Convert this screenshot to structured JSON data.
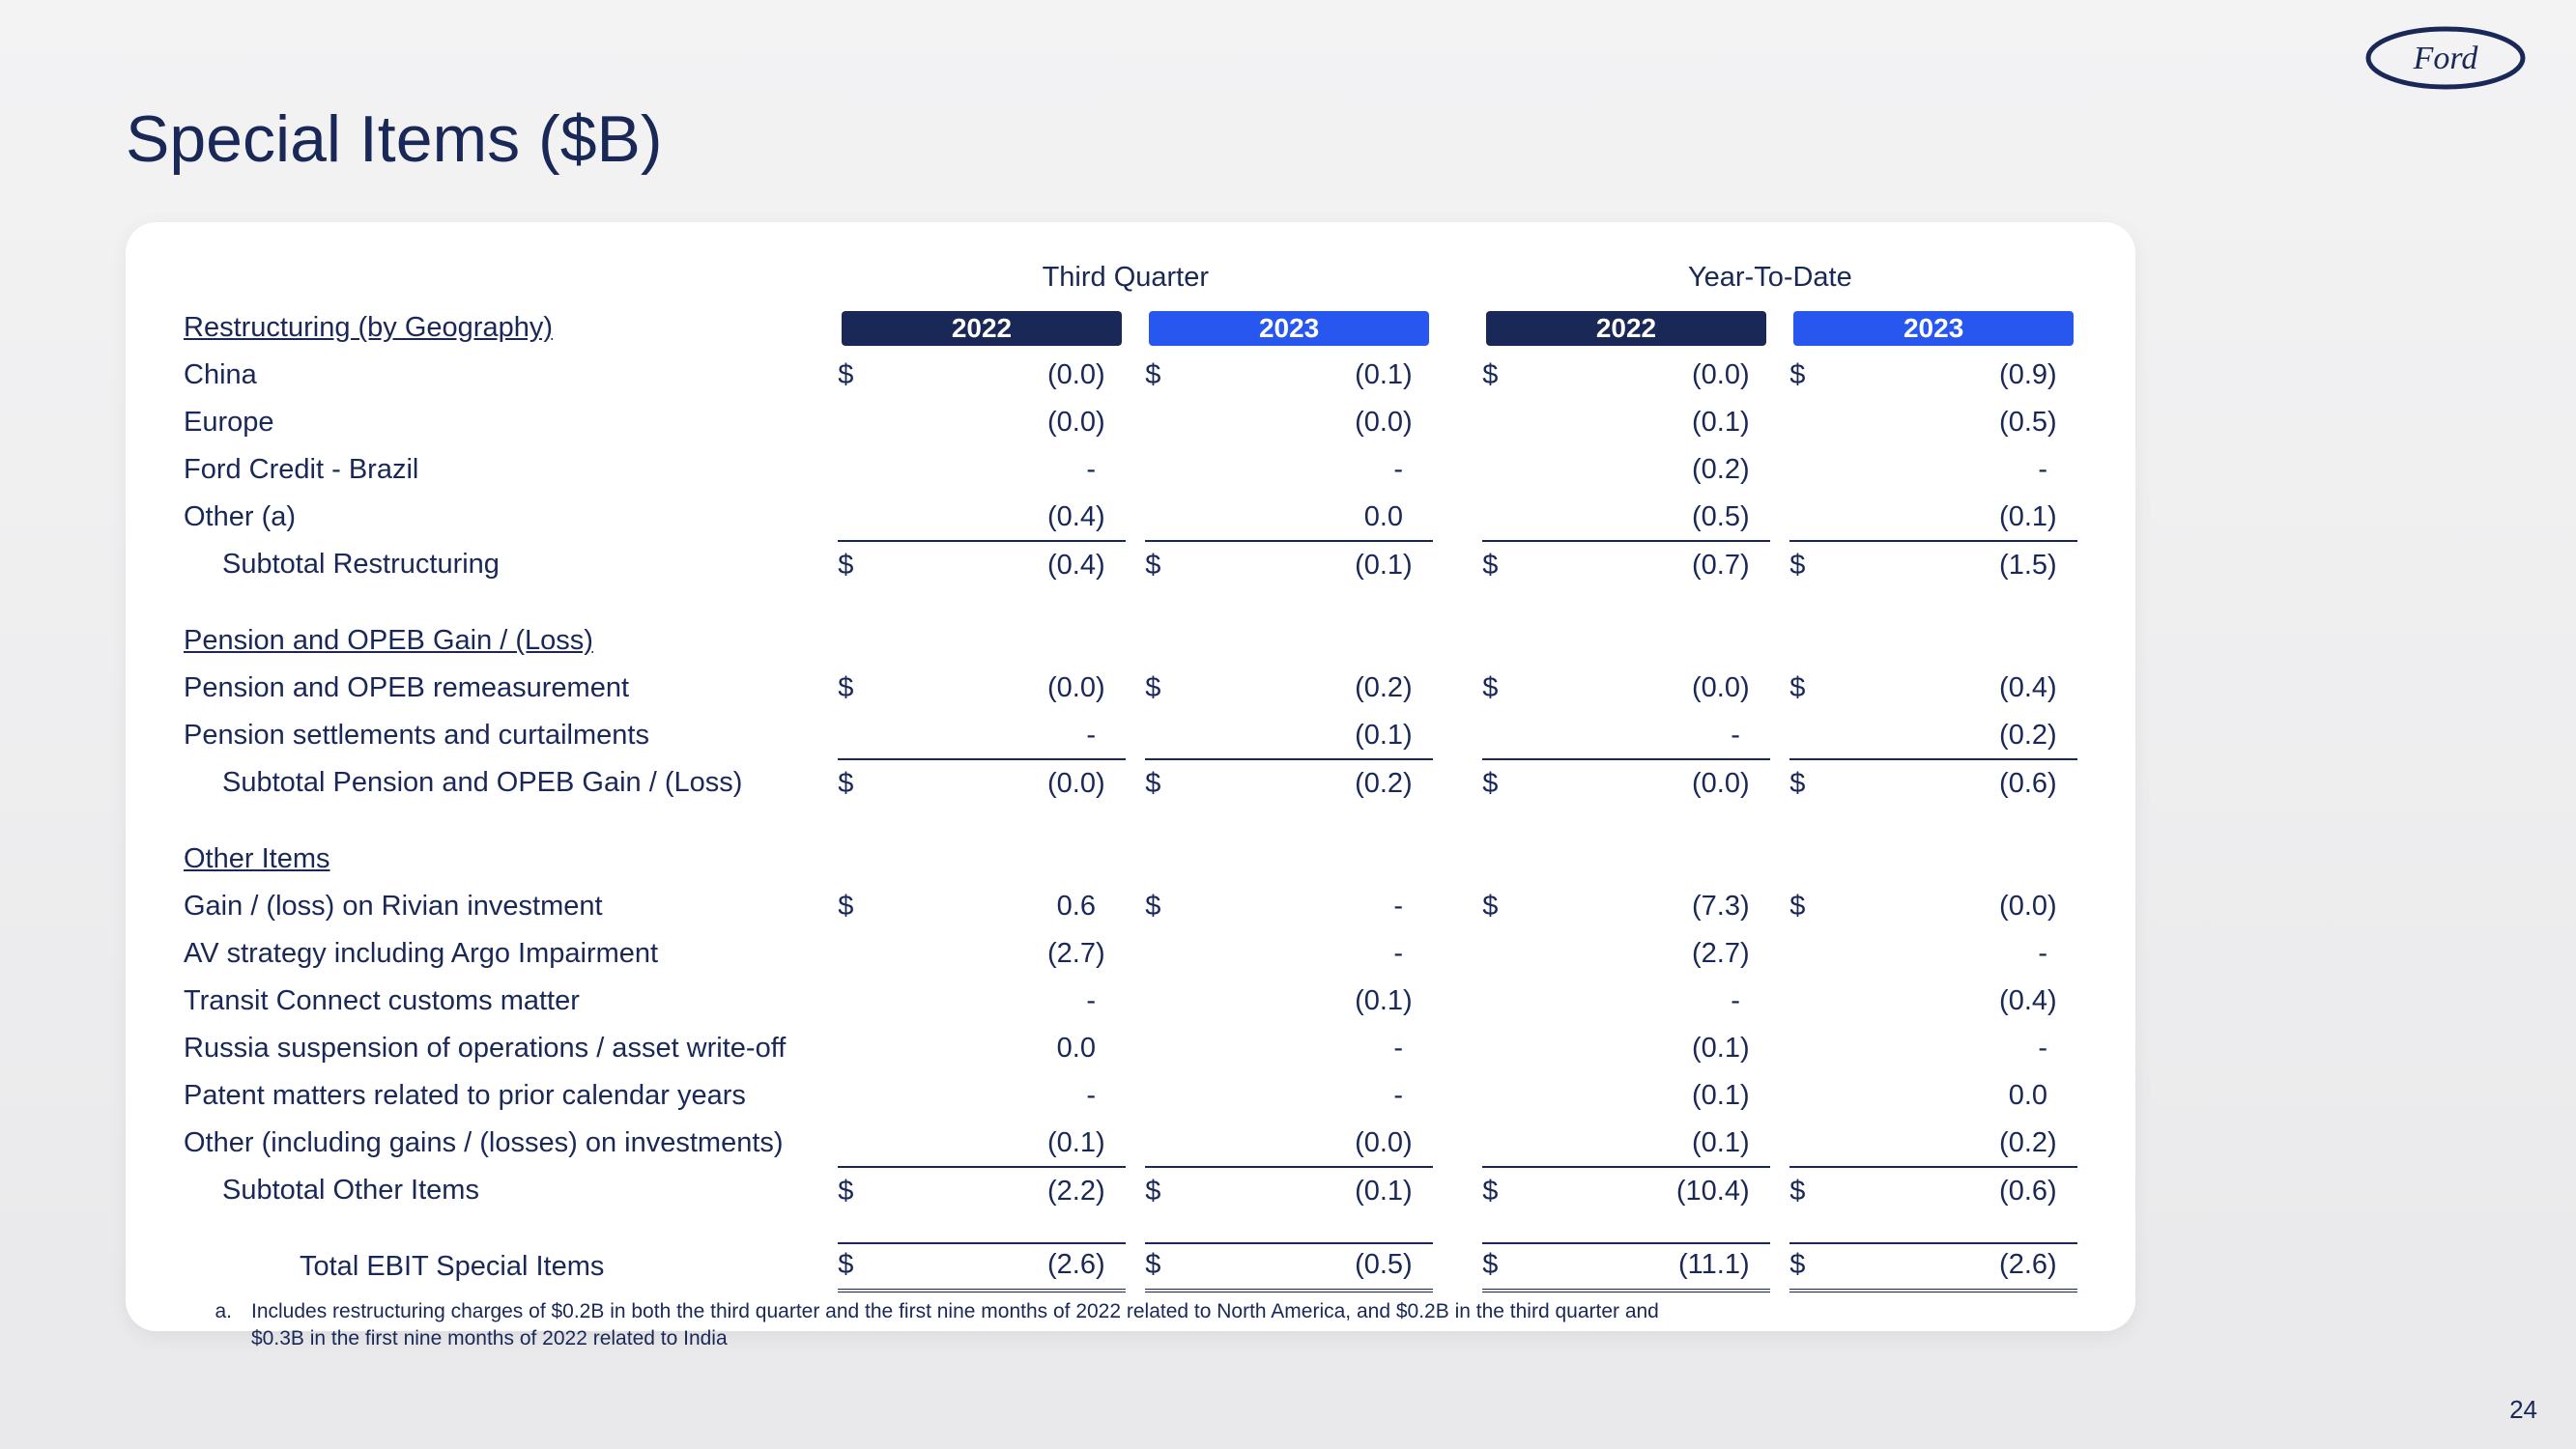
{
  "page": {
    "title": "Special Items ($B)",
    "number": "24"
  },
  "logo": {
    "text": "Ford",
    "color": "#1a2857"
  },
  "table": {
    "periods": [
      "Third Quarter",
      "Year-To-Date"
    ],
    "years": [
      "2022",
      "2023",
      "2022",
      "2023"
    ],
    "year_pill_colors": [
      "#1a2857",
      "#2857f0",
      "#1a2857",
      "#2857f0"
    ],
    "sections": [
      {
        "header": "Restructuring (by Geography)",
        "rows": [
          {
            "label": "China",
            "cells": [
              {
                "sym": "$",
                "val": "(0.0)"
              },
              {
                "sym": "$",
                "val": "(0.1)"
              },
              {
                "sym": "$",
                "val": "(0.0)"
              },
              {
                "sym": "$",
                "val": "(0.9)"
              }
            ]
          },
          {
            "label": "Europe",
            "cells": [
              {
                "sym": "",
                "val": "(0.0)"
              },
              {
                "sym": "",
                "val": "(0.0)"
              },
              {
                "sym": "",
                "val": "(0.1)"
              },
              {
                "sym": "",
                "val": "(0.5)"
              }
            ]
          },
          {
            "label": "Ford Credit - Brazil",
            "cells": [
              {
                "sym": "",
                "val": "-"
              },
              {
                "sym": "",
                "val": "-"
              },
              {
                "sym": "",
                "val": "(0.2)"
              },
              {
                "sym": "",
                "val": "-"
              }
            ]
          },
          {
            "label": "Other (a)",
            "cells": [
              {
                "sym": "",
                "val": "(0.4)"
              },
              {
                "sym": "",
                "val": "0.0"
              },
              {
                "sym": "",
                "val": "(0.5)"
              },
              {
                "sym": "",
                "val": "(0.1)"
              }
            ]
          }
        ],
        "subtotal": {
          "label": "Subtotal Restructuring",
          "cells": [
            {
              "sym": "$",
              "val": "(0.4)"
            },
            {
              "sym": "$",
              "val": "(0.1)"
            },
            {
              "sym": "$",
              "val": "(0.7)"
            },
            {
              "sym": "$",
              "val": "(1.5)"
            }
          ]
        }
      },
      {
        "header": "Pension and OPEB Gain / (Loss)",
        "rows": [
          {
            "label": "Pension and OPEB remeasurement",
            "cells": [
              {
                "sym": "$",
                "val": "(0.0)"
              },
              {
                "sym": "$",
                "val": "(0.2)"
              },
              {
                "sym": "$",
                "val": "(0.0)"
              },
              {
                "sym": "$",
                "val": "(0.4)"
              }
            ]
          },
          {
            "label": "Pension settlements and curtailments",
            "cells": [
              {
                "sym": "",
                "val": "-"
              },
              {
                "sym": "",
                "val": "(0.1)"
              },
              {
                "sym": "",
                "val": "-"
              },
              {
                "sym": "",
                "val": "(0.2)"
              }
            ]
          }
        ],
        "subtotal": {
          "label": "Subtotal Pension and OPEB Gain / (Loss)",
          "cells": [
            {
              "sym": "$",
              "val": "(0.0)"
            },
            {
              "sym": "$",
              "val": "(0.2)"
            },
            {
              "sym": "$",
              "val": "(0.0)"
            },
            {
              "sym": "$",
              "val": "(0.6)"
            }
          ]
        }
      },
      {
        "header": "Other Items",
        "rows": [
          {
            "label": "Gain / (loss) on Rivian investment",
            "cells": [
              {
                "sym": "$",
                "val": "0.6"
              },
              {
                "sym": "$",
                "val": "-"
              },
              {
                "sym": "$",
                "val": "(7.3)"
              },
              {
                "sym": "$",
                "val": "(0.0)"
              }
            ]
          },
          {
            "label": "AV strategy including Argo Impairment",
            "cells": [
              {
                "sym": "",
                "val": "(2.7)"
              },
              {
                "sym": "",
                "val": "-"
              },
              {
                "sym": "",
                "val": "(2.7)"
              },
              {
                "sym": "",
                "val": "-"
              }
            ]
          },
          {
            "label": "Transit Connect customs matter",
            "cells": [
              {
                "sym": "",
                "val": "-"
              },
              {
                "sym": "",
                "val": "(0.1)"
              },
              {
                "sym": "",
                "val": "-"
              },
              {
                "sym": "",
                "val": "(0.4)"
              }
            ]
          },
          {
            "label": "Russia suspension of operations / asset write-off",
            "cells": [
              {
                "sym": "",
                "val": "0.0"
              },
              {
                "sym": "",
                "val": "-"
              },
              {
                "sym": "",
                "val": "(0.1)"
              },
              {
                "sym": "",
                "val": "-"
              }
            ]
          },
          {
            "label": "Patent matters related to prior calendar years",
            "cells": [
              {
                "sym": "",
                "val": "-"
              },
              {
                "sym": "",
                "val": "-"
              },
              {
                "sym": "",
                "val": "(0.1)"
              },
              {
                "sym": "",
                "val": "0.0"
              }
            ]
          },
          {
            "label": "Other (including gains / (losses) on investments)",
            "cells": [
              {
                "sym": "",
                "val": "(0.1)"
              },
              {
                "sym": "",
                "val": "(0.0)"
              },
              {
                "sym": "",
                "val": "(0.1)"
              },
              {
                "sym": "",
                "val": "(0.2)"
              }
            ]
          }
        ],
        "subtotal": {
          "label": "Subtotal Other Items",
          "cells": [
            {
              "sym": "$",
              "val": "(2.2)"
            },
            {
              "sym": "$",
              "val": "(0.1)"
            },
            {
              "sym": "$",
              "val": "(10.4)"
            },
            {
              "sym": "$",
              "val": "(0.6)"
            }
          ]
        }
      }
    ],
    "total": {
      "label": "Total EBIT Special Items",
      "cells": [
        {
          "sym": "$",
          "val": "(2.6)"
        },
        {
          "sym": "$",
          "val": "(0.5)"
        },
        {
          "sym": "$",
          "val": "(11.1)"
        },
        {
          "sym": "$",
          "val": "(2.6)"
        }
      ]
    }
  },
  "footnote": {
    "label": "a.",
    "text": "Includes restructuring charges of $0.2B in both the third quarter and the first nine months of 2022 related to North America, and $0.2B in the third quarter and $0.3B in the first nine months of 2022 related to India"
  }
}
